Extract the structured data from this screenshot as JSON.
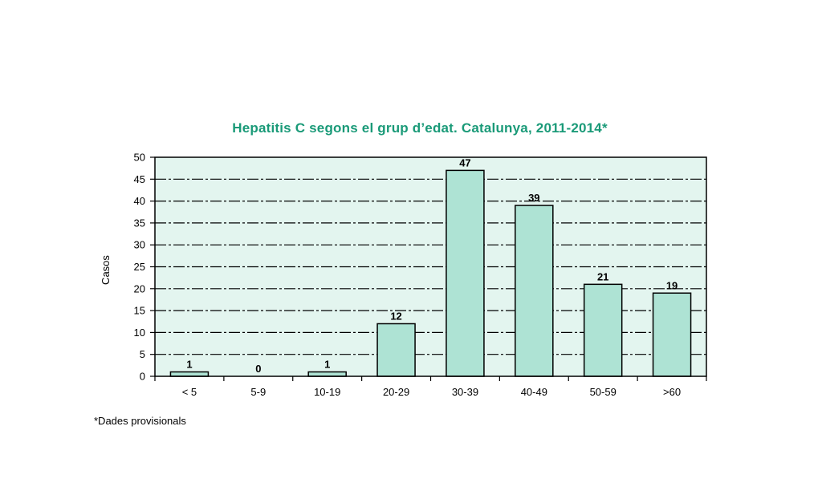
{
  "chart_data": {
    "type": "bar",
    "title": "Hepatitis C segons el grup d’edat. Catalunya, 2011-2014*",
    "xlabel": "",
    "ylabel": "Casos",
    "categories": [
      "< 5",
      "5-9",
      "10-19",
      "20-29",
      "30-39",
      "40-49",
      "50-59",
      ">60"
    ],
    "values": [
      1,
      0,
      1,
      12,
      47,
      39,
      21,
      19
    ],
    "data_labels": [
      "1",
      "0",
      "1",
      "12",
      "47",
      "39",
      "21",
      "19"
    ],
    "ylim": [
      0,
      50
    ],
    "yticks": [
      "0",
      "5",
      "10",
      "15",
      "20",
      "25",
      "30",
      "35",
      "40",
      "45",
      "50"
    ],
    "grid": true,
    "legend": "none",
    "footnote": "*Dades provisionals",
    "colors": {
      "title": "#1a9a78",
      "bar_fill": "#aee3d4",
      "plot_background": "#e3f5ef",
      "gridline": "#000000",
      "bar_stroke": "#000000"
    }
  }
}
